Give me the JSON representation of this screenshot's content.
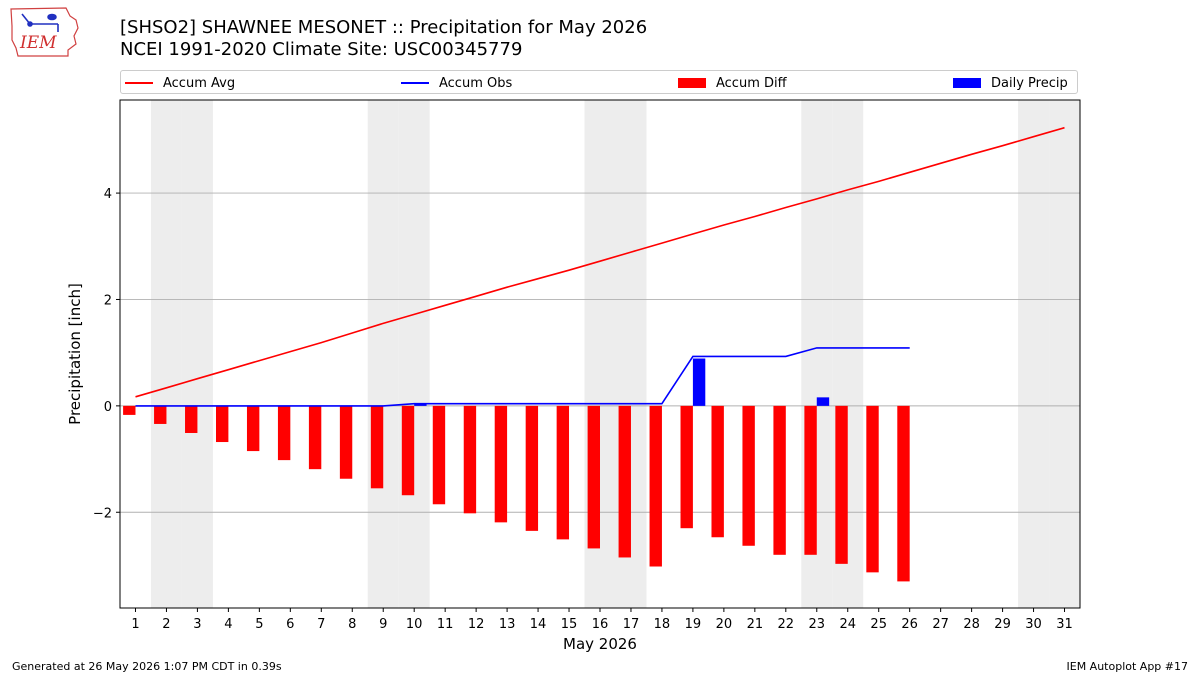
{
  "title_line1": "[SHSO2] SHAWNEE MESONET :: Precipitation for May 2026",
  "title_line2": "NCEI 1991-2020 Climate Site: USC00345779",
  "logo_text": "IEM",
  "footer_left": "Generated at 26 May 2026 1:07 PM CDT in 0.39s",
  "footer_right": "IEM Autoplot App #17",
  "colors": {
    "avg": "#ff0000",
    "obs": "#0000ff",
    "diff": "#ff0000",
    "daily": "#0000ff",
    "weekend": "#ededed",
    "grid": "#b0b0b0"
  },
  "chart_data": {
    "type": "bar",
    "xlabel": "May 2026",
    "ylabel": "Precipitation [inch]",
    "xlim": [
      0.5,
      31.5
    ],
    "ylim": [
      -3.8,
      5.75
    ],
    "yticks": [
      -2,
      0,
      2,
      4
    ],
    "ytick_labels": [
      "−2",
      "0",
      "2",
      "4"
    ],
    "grid": "horizontal",
    "legend_placement": "top, above plot",
    "x": [
      1,
      2,
      3,
      4,
      5,
      6,
      7,
      8,
      9,
      10,
      11,
      12,
      13,
      14,
      15,
      16,
      17,
      18,
      19,
      20,
      21,
      22,
      23,
      24,
      25,
      26,
      27,
      28,
      29,
      30,
      31
    ],
    "weekend_days": [
      2,
      3,
      9,
      10,
      16,
      17,
      23,
      24,
      30,
      31
    ],
    "series": [
      {
        "name": "Accum Avg",
        "kind": "line",
        "color": "#ff0000",
        "x": [
          1,
          2,
          3,
          4,
          5,
          6,
          7,
          8,
          9,
          10,
          11,
          12,
          13,
          14,
          15,
          16,
          17,
          18,
          19,
          20,
          21,
          22,
          23,
          24,
          25,
          26,
          27,
          28,
          29,
          30,
          31
        ],
        "values": [
          0.17,
          0.34,
          0.51,
          0.68,
          0.85,
          1.02,
          1.19,
          1.37,
          1.55,
          1.72,
          1.89,
          2.06,
          2.23,
          2.39,
          2.55,
          2.72,
          2.89,
          3.06,
          3.23,
          3.4,
          3.56,
          3.73,
          3.89,
          4.06,
          4.22,
          4.39,
          4.56,
          4.73,
          4.89,
          5.06,
          5.23
        ]
      },
      {
        "name": "Accum Obs",
        "kind": "line",
        "color": "#0000ff",
        "x": [
          1,
          2,
          3,
          4,
          5,
          6,
          7,
          8,
          9,
          10,
          11,
          12,
          13,
          14,
          15,
          16,
          17,
          18,
          19,
          20,
          21,
          22,
          23,
          24,
          25,
          26
        ],
        "values": [
          0,
          0,
          0,
          0,
          0,
          0,
          0,
          0,
          0,
          0.04,
          0.04,
          0.04,
          0.04,
          0.04,
          0.04,
          0.04,
          0.04,
          0.04,
          0.93,
          0.93,
          0.93,
          0.93,
          1.09,
          1.09,
          1.09,
          1.09
        ]
      },
      {
        "name": "Accum Diff",
        "kind": "bar",
        "color": "#ff0000",
        "x": [
          1,
          2,
          3,
          4,
          5,
          6,
          7,
          8,
          9,
          10,
          11,
          12,
          13,
          14,
          15,
          16,
          17,
          18,
          19,
          20,
          21,
          22,
          23,
          24,
          25,
          26
        ],
        "values": [
          -0.17,
          -0.34,
          -0.51,
          -0.68,
          -0.85,
          -1.02,
          -1.19,
          -1.37,
          -1.55,
          -1.68,
          -1.85,
          -2.02,
          -2.19,
          -2.35,
          -2.51,
          -2.68,
          -2.85,
          -3.02,
          -2.3,
          -2.47,
          -2.63,
          -2.8,
          -2.8,
          -2.97,
          -3.13,
          -3.3
        ]
      },
      {
        "name": "Daily Precip",
        "kind": "bar",
        "color": "#0000ff",
        "x": [
          10,
          19,
          23
        ],
        "values": [
          0.04,
          0.89,
          0.16
        ]
      }
    ]
  }
}
